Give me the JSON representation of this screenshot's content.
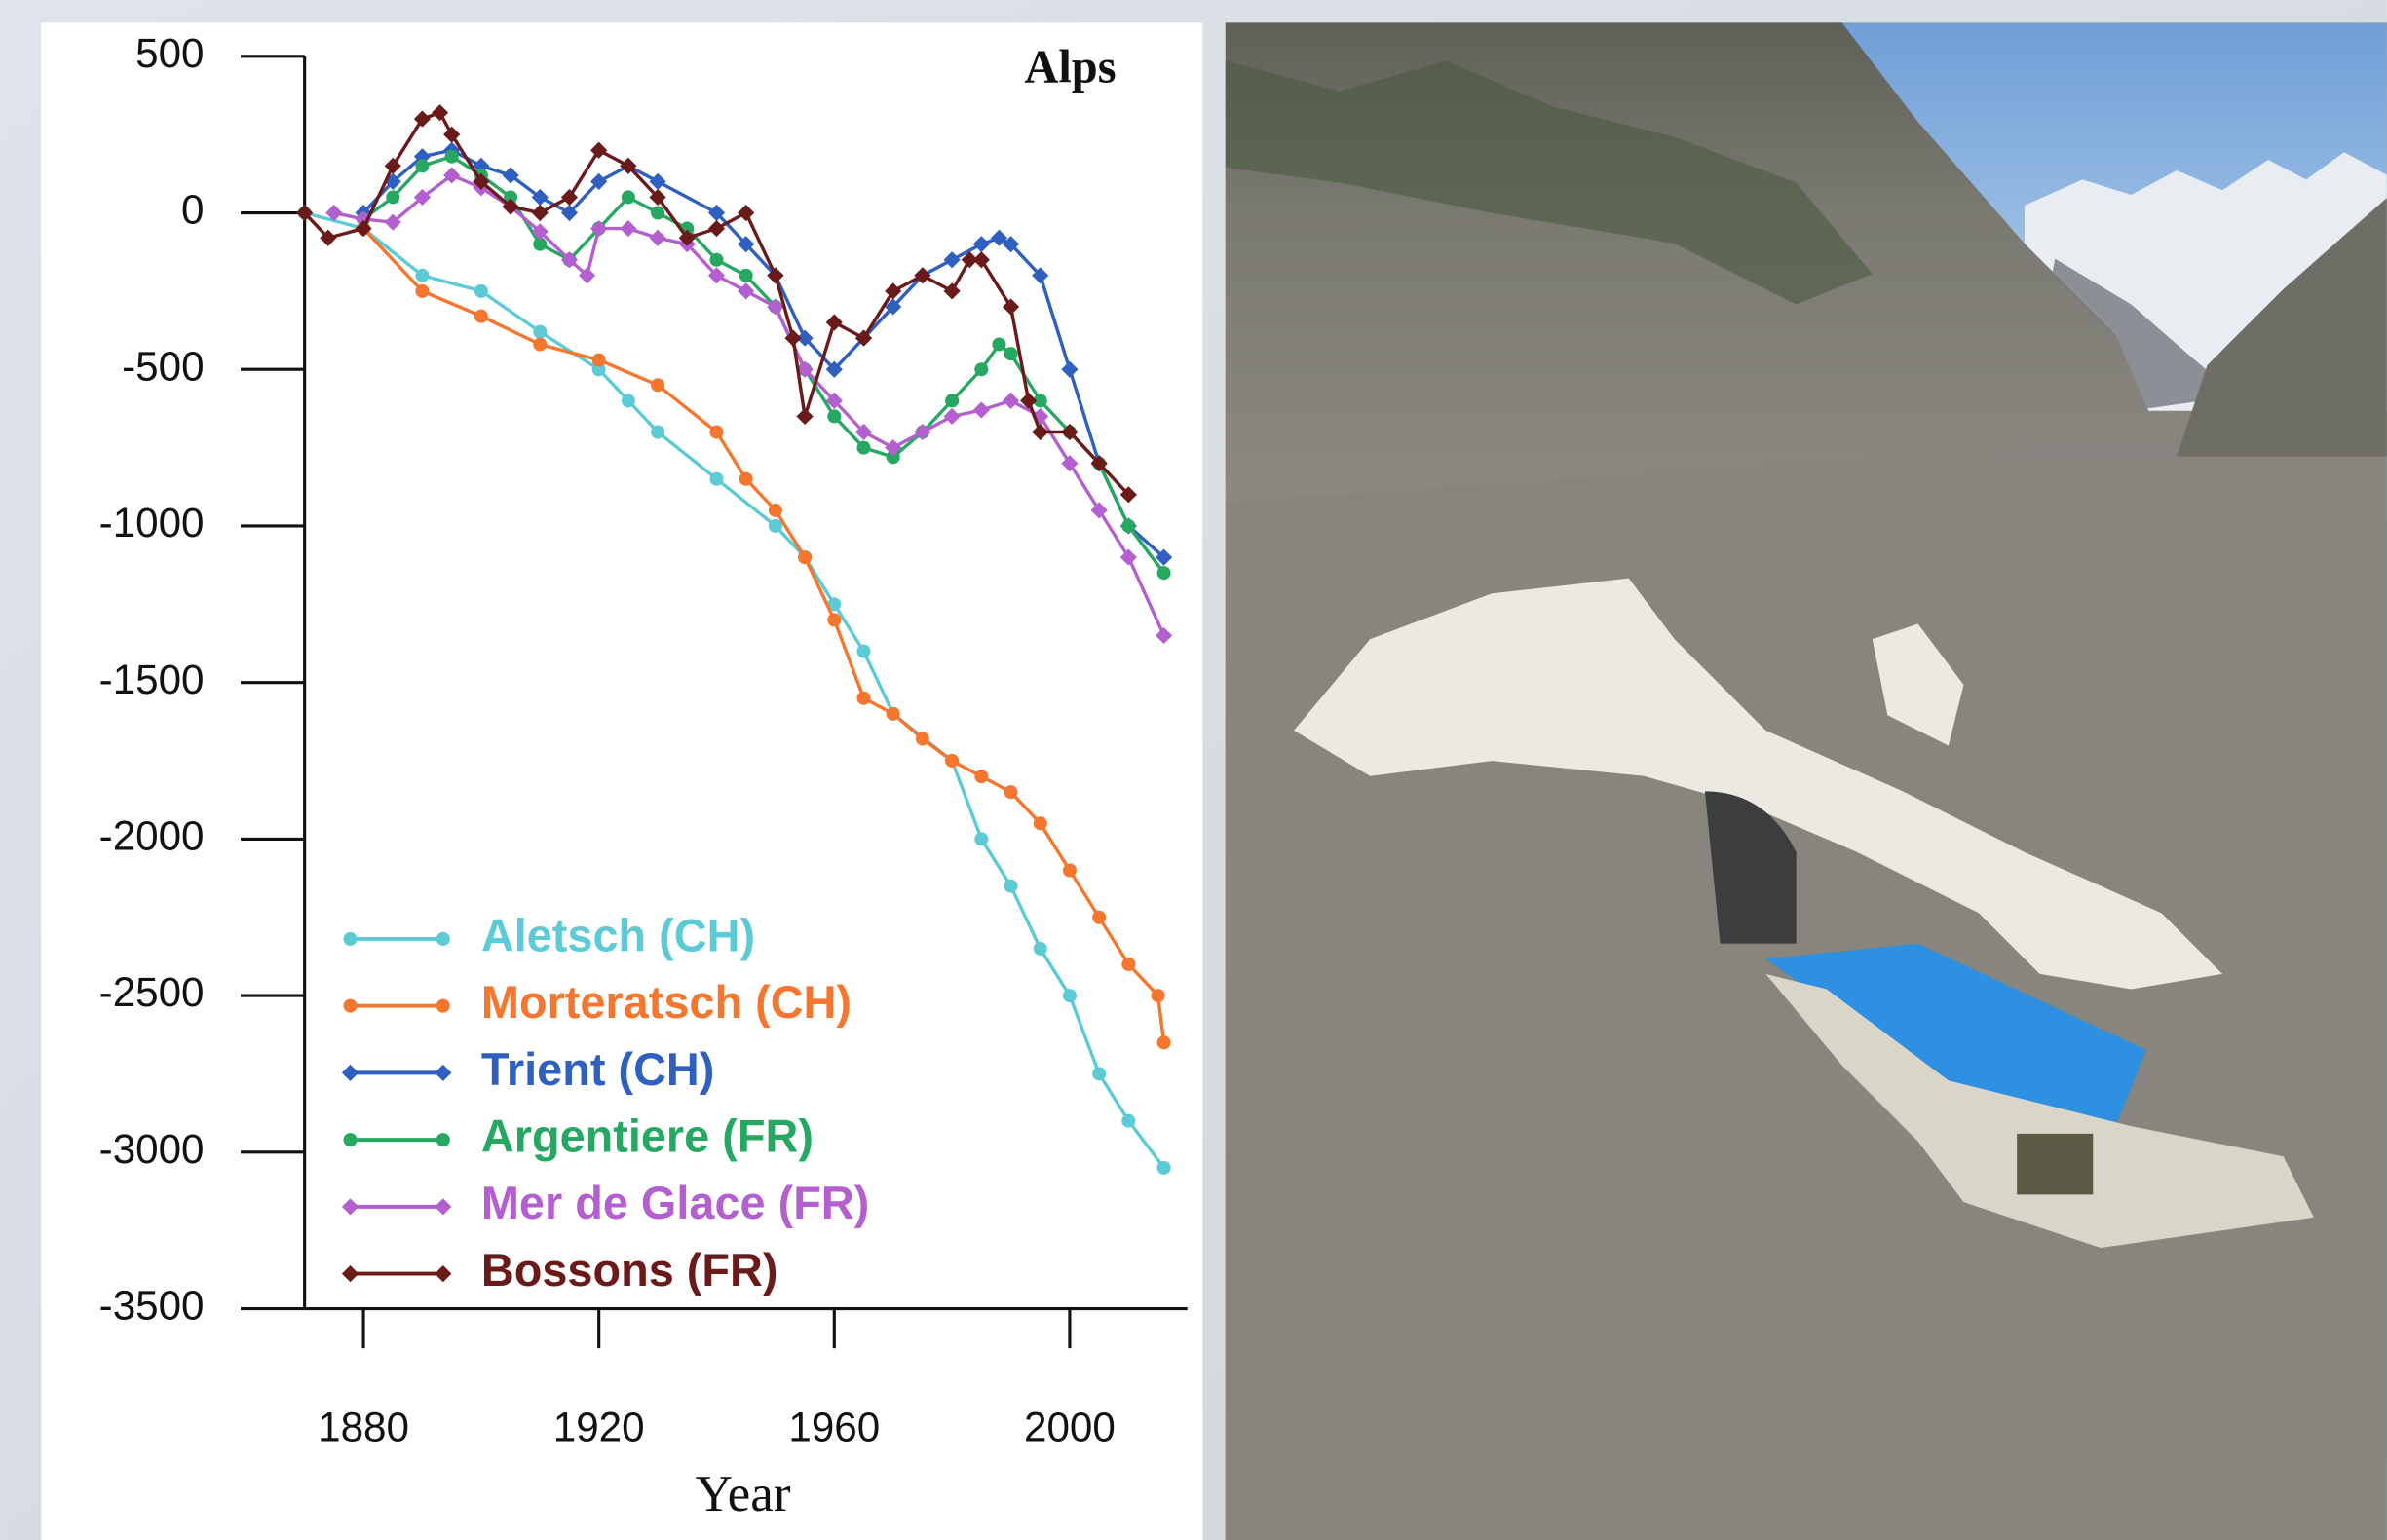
{
  "chart_data": {
    "type": "line",
    "title": "Alps",
    "x_label": "Year",
    "xlim": [
      1870,
      2020
    ],
    "xticks": [
      1880,
      1920,
      1960,
      2000
    ],
    "ylim": [
      -3500,
      500
    ],
    "yticks": [
      500,
      0,
      -500,
      -1000,
      -1500,
      -2000,
      -2500,
      -3000,
      -3500
    ],
    "legend": "lower left",
    "series": [
      {
        "name": "Aletsch (CH)",
        "color": "#5ccbd6",
        "marker": "circle",
        "x": [
          1870,
          1880,
          1890,
          1900,
          1910,
          1920,
          1925,
          1930,
          1940,
          1950,
          1955,
          1960,
          1965,
          1970,
          1980,
          1985,
          1990,
          1995,
          2000,
          2005,
          2010,
          2016
        ],
        "values": [
          0,
          -50,
          -200,
          -250,
          -380,
          -500,
          -600,
          -700,
          -850,
          -1000,
          -1100,
          -1250,
          -1400,
          -1600,
          -1750,
          -2000,
          -2150,
          -2350,
          -2500,
          -2750,
          -2900,
          -3050
        ]
      },
      {
        "name": "Morteratsch (CH)",
        "color": "#f5772f",
        "marker": "circle",
        "x": [
          1880,
          1890,
          1900,
          1910,
          1920,
          1930,
          1940,
          1945,
          1950,
          1955,
          1960,
          1965,
          1970,
          1975,
          1980,
          1985,
          1990,
          1995,
          2000,
          2005,
          2010,
          2015,
          2016
        ],
        "values": [
          -50,
          -250,
          -330,
          -420,
          -470,
          -550,
          -700,
          -850,
          -950,
          -1100,
          -1300,
          -1550,
          -1600,
          -1680,
          -1750,
          -1800,
          -1850,
          -1950,
          -2100,
          -2250,
          -2400,
          -2500,
          -2650
        ]
      },
      {
        "name": "Trient (CH)",
        "color": "#2f5fbf",
        "marker": "diamond",
        "x": [
          1880,
          1885,
          1890,
          1895,
          1900,
          1905,
          1910,
          1915,
          1920,
          1925,
          1930,
          1940,
          1945,
          1950,
          1955,
          1960,
          1965,
          1970,
          1975,
          1980,
          1985,
          1988,
          1990,
          1995,
          2000,
          2005,
          2010,
          2016
        ],
        "values": [
          0,
          100,
          180,
          200,
          150,
          120,
          50,
          0,
          100,
          150,
          100,
          0,
          -100,
          -200,
          -400,
          -500,
          -400,
          -300,
          -200,
          -150,
          -100,
          -80,
          -100,
          -200,
          -500,
          -800,
          -1000,
          -1100
        ]
      },
      {
        "name": "Argentiere (FR)",
        "color": "#27a862",
        "marker": "circle",
        "x": [
          1880,
          1885,
          1890,
          1895,
          1900,
          1905,
          1910,
          1915,
          1920,
          1925,
          1930,
          1935,
          1940,
          1945,
          1950,
          1955,
          1960,
          1965,
          1970,
          1975,
          1980,
          1985,
          1988,
          1990,
          1995,
          2000,
          2005,
          2010,
          2016
        ],
        "values": [
          -20,
          50,
          150,
          180,
          120,
          50,
          -100,
          -150,
          -50,
          50,
          0,
          -50,
          -150,
          -200,
          -300,
          -500,
          -650,
          -750,
          -780,
          -700,
          -600,
          -500,
          -420,
          -450,
          -600,
          -700,
          -800,
          -1000,
          -1150
        ]
      },
      {
        "name": "Mer de Glace (FR)",
        "color": "#b45fcf",
        "marker": "diamond",
        "x": [
          1875,
          1880,
          1885,
          1890,
          1895,
          1900,
          1905,
          1910,
          1915,
          1918,
          1920,
          1925,
          1930,
          1935,
          1940,
          1945,
          1950,
          1955,
          1960,
          1965,
          1970,
          1975,
          1980,
          1985,
          1990,
          1995,
          2000,
          2005,
          2010,
          2016
        ],
        "values": [
          0,
          -20,
          -30,
          50,
          120,
          80,
          20,
          -60,
          -150,
          -200,
          -50,
          -50,
          -80,
          -100,
          -200,
          -250,
          -300,
          -500,
          -600,
          -700,
          -750,
          -700,
          -650,
          -630,
          -600,
          -650,
          -800,
          -950,
          -1100,
          -1350
        ]
      },
      {
        "name": "Bossons (FR)",
        "color": "#6b1a1a",
        "marker": "diamond",
        "x": [
          1870,
          1874,
          1880,
          1885,
          1890,
          1893,
          1895,
          1900,
          1905,
          1910,
          1915,
          1920,
          1925,
          1930,
          1935,
          1940,
          1945,
          1950,
          1953,
          1955,
          1960,
          1965,
          1970,
          1975,
          1980,
          1983,
          1985,
          1990,
          1993,
          1995,
          2000,
          2005,
          2010
        ],
        "values": [
          0,
          -80,
          -50,
          150,
          300,
          320,
          250,
          100,
          20,
          0,
          50,
          200,
          150,
          50,
          -80,
          -50,
          0,
          -200,
          -400,
          -650,
          -350,
          -400,
          -250,
          -200,
          -250,
          -150,
          -150,
          -300,
          -600,
          -700,
          -700,
          -800,
          -900
        ]
      }
    ]
  }
}
